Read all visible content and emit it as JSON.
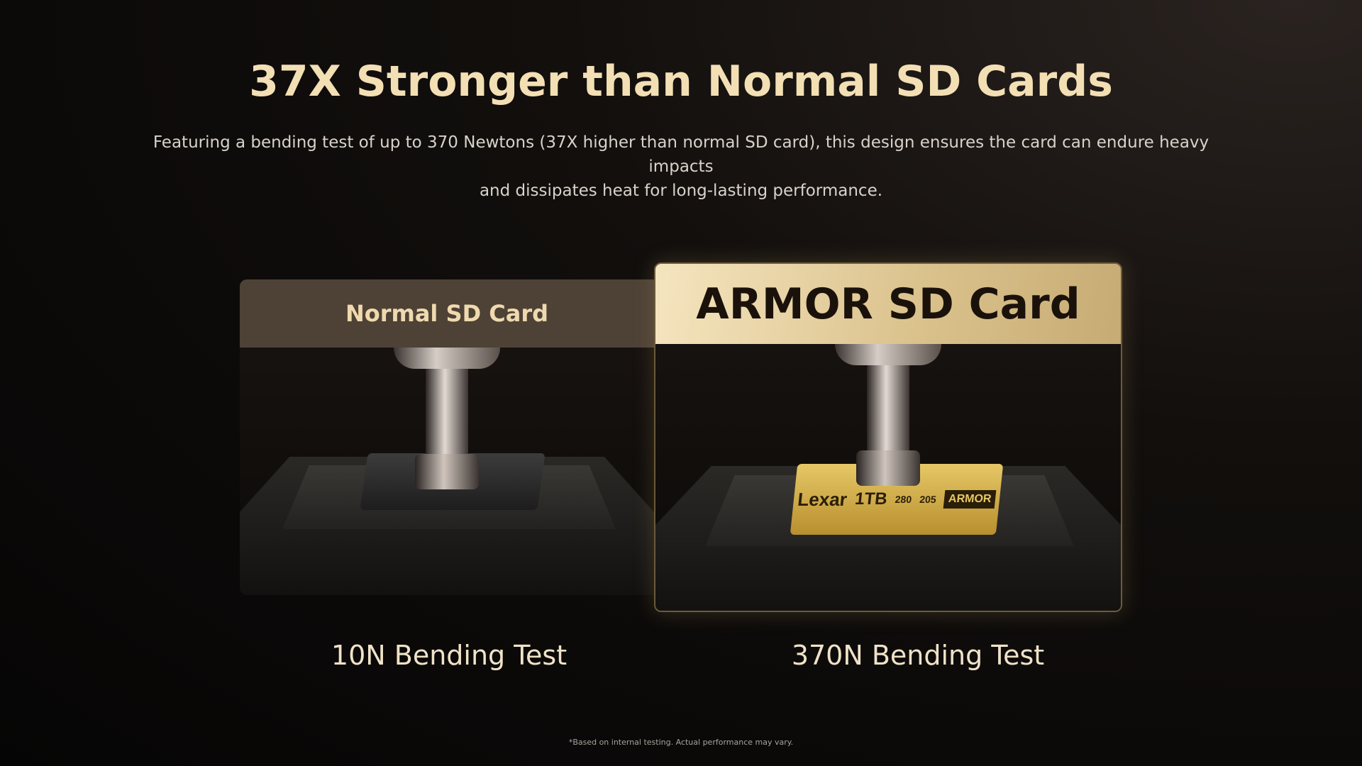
{
  "title": "37X Stronger than Normal SD Cards",
  "subtitle_line1": "Featuring a bending test of up to 370 Newtons (37X higher than normal SD card), this design ensures the card can endure heavy impacts",
  "subtitle_line2": "and dissipates heat for long-lasting performance.",
  "panels": [
    {
      "header": "Normal SD Card",
      "caption": "10N Bending Test",
      "header_color": "#4e4236"
    },
    {
      "header": "ARMOR SD Card",
      "caption": "370N Bending Test",
      "header_color": "#e8d3a0",
      "card_text": {
        "brand": "Lexar",
        "capacity": "1TB",
        "badge": "ARMOR",
        "read": "280",
        "write": "205"
      }
    }
  ],
  "footnote": "*Based on internal testing. Actual performance may vary.",
  "colors": {
    "title": "#f3dfb4",
    "background": "#0b0908",
    "gold": "#d9c08a"
  }
}
